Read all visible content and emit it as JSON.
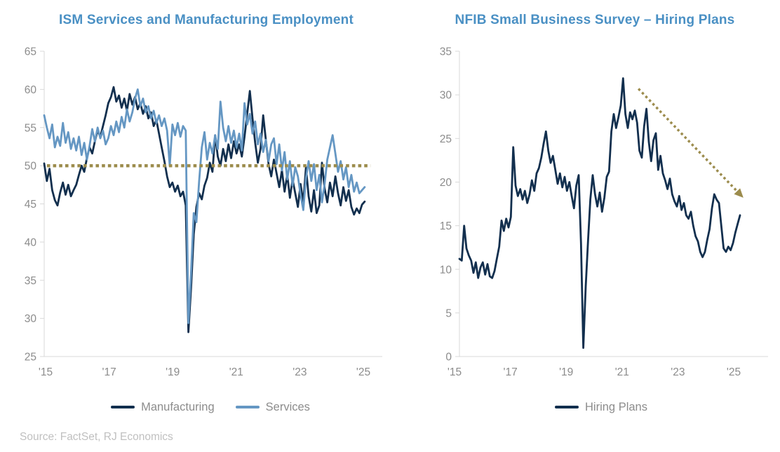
{
  "source_note": "Source: FactSet, RJ Economics",
  "colors": {
    "title": "#4a90c4",
    "manufacturing": "#122f4e",
    "services": "#6597c3",
    "hiring_plans": "#122f4e",
    "reference": "#9c8c4d",
    "axis_line": "#d9d9d9",
    "tick_label": "#8c8c8c",
    "legend_label": "#8c8c8c",
    "source": "#c0c0c0"
  },
  "chart_data": [
    {
      "type": "line",
      "title": "ISM Services and Manufacturing Employment",
      "x_tick_labels": [
        "'15",
        "'17",
        "'19",
        "'21",
        "'23",
        "'25"
      ],
      "y_tick_labels": [
        65,
        60,
        55,
        50,
        45,
        40,
        35,
        30,
        25
      ],
      "ylim": [
        25,
        65
      ],
      "grid": false,
      "legend_position": "bottom",
      "reference_line": {
        "value": 50,
        "style": "dotted",
        "color": "#9c8c4d"
      },
      "series": [
        {
          "name": "Manufacturing",
          "color": "#122f4e",
          "values": [
            50.3,
            48.0,
            49.6,
            46.8,
            45.5,
            44.8,
            46.5,
            47.8,
            46.2,
            47.5,
            46.0,
            46.8,
            47.5,
            48.8,
            50.0,
            49.2,
            51.0,
            52.4,
            51.6,
            53.2,
            54.6,
            53.8,
            55.2,
            56.6,
            58.2,
            59.0,
            60.3,
            58.4,
            59.2,
            57.6,
            58.8,
            57.2,
            59.4,
            58.0,
            59.0,
            57.4,
            58.2,
            56.8,
            57.8,
            56.2,
            57.0,
            55.2,
            56.0,
            54.2,
            52.4,
            50.6,
            48.6,
            47.2,
            47.8,
            46.6,
            47.4,
            46.0,
            46.6,
            44.8,
            28.2,
            34.0,
            41.0,
            44.6,
            46.4,
            45.6,
            47.4,
            48.4,
            50.4,
            49.2,
            54.0,
            51.2,
            50.0,
            52.2,
            50.6,
            52.8,
            51.0,
            53.2,
            51.6,
            52.8,
            51.2,
            53.8,
            56.8,
            59.8,
            56.2,
            53.0,
            50.4,
            52.2,
            56.6,
            53.4,
            50.2,
            48.6,
            50.8,
            49.0,
            47.2,
            49.4,
            46.6,
            48.8,
            45.8,
            48.2,
            46.4,
            44.6,
            47.6,
            45.2,
            49.8,
            46.0,
            44.0,
            46.8,
            43.8,
            44.8,
            50.4,
            47.0,
            45.2,
            47.8,
            46.0,
            48.6,
            46.4,
            44.8,
            47.2,
            45.4,
            46.8,
            44.6,
            43.6,
            44.4,
            43.8,
            44.9,
            45.3
          ]
        },
        {
          "name": "Services",
          "color": "#6597c3",
          "values": [
            56.6,
            55.0,
            53.6,
            55.4,
            52.4,
            53.8,
            52.6,
            55.6,
            53.0,
            54.4,
            52.2,
            53.6,
            52.0,
            53.8,
            51.4,
            53.0,
            50.8,
            52.6,
            54.8,
            53.2,
            55.0,
            53.6,
            54.6,
            52.8,
            53.6,
            55.2,
            54.0,
            55.8,
            54.4,
            56.4,
            55.0,
            57.4,
            55.8,
            57.0,
            58.8,
            60.0,
            57.8,
            58.8,
            57.0,
            57.8,
            56.2,
            57.2,
            55.6,
            56.6,
            55.2,
            56.2,
            54.6,
            50.0,
            55.4,
            54.0,
            55.6,
            53.8,
            55.2,
            54.6,
            29.4,
            36.0,
            43.8,
            42.6,
            48.0,
            52.4,
            54.4,
            50.8,
            53.0,
            51.6,
            54.0,
            52.2,
            58.4,
            55.0,
            53.2,
            55.2,
            53.0,
            54.6,
            52.4,
            54.2,
            52.0,
            58.2,
            55.4,
            56.8,
            54.2,
            55.8,
            52.8,
            54.2,
            51.8,
            53.4,
            50.6,
            52.8,
            53.6,
            50.2,
            52.8,
            49.4,
            51.8,
            48.2,
            50.6,
            47.4,
            49.8,
            48.6,
            46.2,
            44.2,
            48.4,
            50.6,
            48.0,
            50.2,
            46.8,
            48.8,
            45.2,
            47.6,
            50.8,
            52.4,
            54.0,
            51.6,
            49.2,
            50.6,
            48.2,
            49.8,
            47.2,
            48.8,
            46.6,
            47.8,
            46.4,
            46.8,
            47.2
          ]
        }
      ]
    },
    {
      "type": "line",
      "title": "NFIB Small Business Survey – Hiring Plans",
      "x_tick_labels": [
        "'15",
        "'17",
        "'19",
        "'21",
        "'23",
        "'25"
      ],
      "y_tick_labels": [
        35,
        30,
        25,
        20,
        15,
        10,
        5,
        0
      ],
      "ylim": [
        0,
        35
      ],
      "grid": false,
      "legend_position": "bottom",
      "trend_arrow": {
        "from_value": 30.7,
        "to_value": 18.2,
        "x_start_frac": 0.58,
        "x_end_frac": 0.92,
        "style": "dotted",
        "color": "#9c8c4d",
        "direction": "down"
      },
      "series": [
        {
          "name": "Hiring Plans",
          "color": "#122f4e",
          "values": [
            11.2,
            11.0,
            15.0,
            12.4,
            11.6,
            11.0,
            9.6,
            10.8,
            9.0,
            10.2,
            10.8,
            9.4,
            10.6,
            9.2,
            9.0,
            9.8,
            11.2,
            12.6,
            15.6,
            14.4,
            15.8,
            14.8,
            16.0,
            24.0,
            19.6,
            18.4,
            19.2,
            18.0,
            19.0,
            17.6,
            18.6,
            20.2,
            19.0,
            21.0,
            21.6,
            22.8,
            24.4,
            25.8,
            23.6,
            22.2,
            23.0,
            21.4,
            19.8,
            21.0,
            19.4,
            20.6,
            19.0,
            20.0,
            18.4,
            17.0,
            19.6,
            20.8,
            13.0,
            1.0,
            8.0,
            13.2,
            18.0,
            20.8,
            18.6,
            17.2,
            18.8,
            16.6,
            18.2,
            20.6,
            21.2,
            25.8,
            27.8,
            26.2,
            27.4,
            28.8,
            31.9,
            27.8,
            26.2,
            28.0,
            27.2,
            28.2,
            26.8,
            23.6,
            22.8,
            26.4,
            28.4,
            24.6,
            22.4,
            24.8,
            25.6,
            21.4,
            23.0,
            21.0,
            20.2,
            19.2,
            20.4,
            18.6,
            17.8,
            17.2,
            18.4,
            16.8,
            17.6,
            16.2,
            15.8,
            16.6,
            15.0,
            13.8,
            13.2,
            12.0,
            11.4,
            12.0,
            13.4,
            14.6,
            17.0,
            18.6,
            18.0,
            17.6,
            15.0,
            12.4,
            12.0,
            12.6,
            12.2,
            13.0,
            14.2,
            15.2,
            16.2
          ]
        }
      ]
    }
  ]
}
